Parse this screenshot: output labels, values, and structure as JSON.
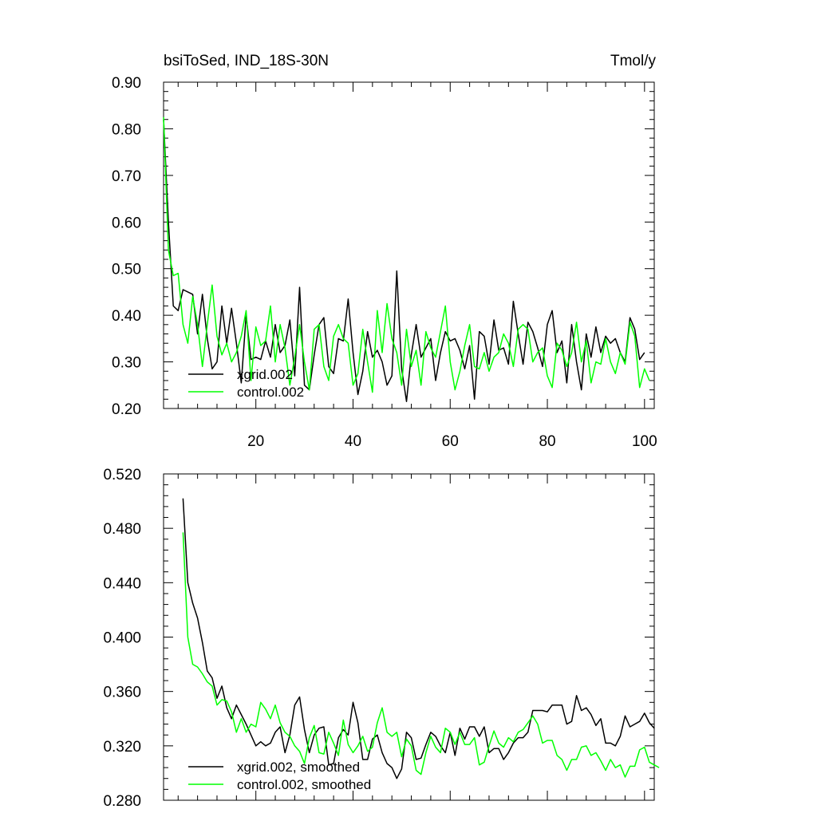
{
  "chart_data": [
    {
      "type": "line",
      "title_left": "bsiToSed, IND_18S-30N",
      "title_right": "Tmol/y",
      "xlim": [
        1,
        102
      ],
      "ylim": [
        0.2,
        0.9
      ],
      "yticks": [
        "0.90",
        "0.80",
        "0.70",
        "0.60",
        "0.50",
        "0.40",
        "0.30",
        "0.20"
      ],
      "xticks": [
        "20",
        "40",
        "60",
        "80",
        "100"
      ],
      "series": [
        {
          "name": "xgrid.002",
          "color": "#000000",
          "x_start": 1,
          "values": [
            0.82,
            0.6,
            0.42,
            0.41,
            0.455,
            0.45,
            0.445,
            0.36,
            0.445,
            0.35,
            0.285,
            0.3,
            0.42,
            0.34,
            0.415,
            0.34,
            0.255,
            0.4,
            0.305,
            0.31,
            0.305,
            0.345,
            0.31,
            0.38,
            0.32,
            0.335,
            0.39,
            0.27,
            0.46,
            0.25,
            0.24,
            0.315,
            0.38,
            0.395,
            0.29,
            0.275,
            0.35,
            0.345,
            0.435,
            0.32,
            0.23,
            0.28,
            0.365,
            0.31,
            0.325,
            0.3,
            0.25,
            0.27,
            0.495,
            0.285,
            0.215,
            0.315,
            0.38,
            0.31,
            0.33,
            0.35,
            0.26,
            0.32,
            0.365,
            0.345,
            0.35,
            0.325,
            0.285,
            0.335,
            0.22,
            0.365,
            0.355,
            0.295,
            0.39,
            0.325,
            0.33,
            0.295,
            0.43,
            0.36,
            0.295,
            0.385,
            0.365,
            0.33,
            0.29,
            0.38,
            0.41,
            0.32,
            0.345,
            0.255,
            0.38,
            0.3,
            0.24,
            0.36,
            0.31,
            0.375,
            0.32,
            0.355,
            0.34,
            0.35,
            0.32,
            0.3,
            0.395,
            0.37,
            0.305,
            0.32
          ]
        },
        {
          "name": "control.002",
          "color": "#00ff00",
          "x_start": 1,
          "values": [
            0.825,
            0.54,
            0.485,
            0.49,
            0.38,
            0.34,
            0.44,
            0.38,
            0.29,
            0.38,
            0.465,
            0.355,
            0.315,
            0.34,
            0.3,
            0.32,
            0.355,
            0.41,
            0.26,
            0.375,
            0.335,
            0.345,
            0.42,
            0.3,
            0.38,
            0.33,
            0.25,
            0.31,
            0.38,
            0.3,
            0.24,
            0.37,
            0.38,
            0.29,
            0.26,
            0.355,
            0.38,
            0.35,
            0.34,
            0.25,
            0.275,
            0.37,
            0.3,
            0.235,
            0.41,
            0.32,
            0.425,
            0.35,
            0.32,
            0.25,
            0.37,
            0.29,
            0.325,
            0.25,
            0.365,
            0.33,
            0.31,
            0.365,
            0.42,
            0.3,
            0.24,
            0.28,
            0.335,
            0.38,
            0.29,
            0.285,
            0.32,
            0.28,
            0.31,
            0.32,
            0.36,
            0.34,
            0.29,
            0.37,
            0.38,
            0.37,
            0.3,
            0.32,
            0.33,
            0.27,
            0.245,
            0.34,
            0.325,
            0.29,
            0.32,
            0.385,
            0.3,
            0.345,
            0.255,
            0.3,
            0.295,
            0.35,
            0.3,
            0.275,
            0.32,
            0.295,
            0.385,
            0.355,
            0.245,
            0.285,
            0.26
          ]
        }
      ],
      "legend": [
        "xgrid.002",
        "control.002"
      ],
      "legend_position": "bottom-left"
    },
    {
      "type": "line",
      "xlim": [
        1,
        102
      ],
      "ylim": [
        0.28,
        0.52
      ],
      "yticks": [
        "0.520",
        "0.480",
        "0.440",
        "0.400",
        "0.360",
        "0.320",
        "0.280"
      ],
      "series": [
        {
          "name": "xgrid.002, smoothed",
          "color": "#000000",
          "x_start": 5,
          "values": [
            0.502,
            0.44,
            0.425,
            0.414,
            0.396,
            0.375,
            0.37,
            0.355,
            0.364,
            0.348,
            0.34,
            0.35,
            0.343,
            0.336,
            0.328,
            0.32,
            0.323,
            0.32,
            0.322,
            0.33,
            0.334,
            0.315,
            0.328,
            0.35,
            0.356,
            0.332,
            0.315,
            0.328,
            0.333,
            0.334,
            0.306,
            0.307,
            0.326,
            0.332,
            0.328,
            0.352,
            0.337,
            0.31,
            0.31,
            0.325,
            0.328,
            0.315,
            0.307,
            0.304,
            0.296,
            0.303,
            0.33,
            0.326,
            0.31,
            0.311,
            0.321,
            0.33,
            0.327,
            0.32,
            0.315,
            0.33,
            0.313,
            0.333,
            0.325,
            0.334,
            0.334,
            0.327,
            0.334,
            0.315,
            0.318,
            0.318,
            0.31,
            0.315,
            0.322,
            0.326,
            0.326,
            0.33,
            0.346,
            0.346,
            0.346,
            0.345,
            0.35,
            0.35,
            0.35,
            0.336,
            0.338,
            0.357,
            0.346,
            0.348,
            0.343,
            0.335,
            0.34,
            0.322,
            0.322,
            0.32,
            0.327,
            0.342,
            0.334,
            0.336,
            0.338,
            0.344,
            0.337,
            0.333
          ]
        },
        {
          "name": "control.002, smoothed",
          "color": "#00ff00",
          "x_start": 5,
          "values": [
            0.477,
            0.4,
            0.38,
            0.378,
            0.373,
            0.367,
            0.364,
            0.35,
            0.354,
            0.353,
            0.345,
            0.33,
            0.34,
            0.33,
            0.336,
            0.334,
            0.352,
            0.347,
            0.34,
            0.35,
            0.337,
            0.33,
            0.327,
            0.32,
            0.316,
            0.307,
            0.326,
            0.335,
            0.315,
            0.314,
            0.33,
            0.322,
            0.313,
            0.339,
            0.321,
            0.315,
            0.32,
            0.327,
            0.316,
            0.319,
            0.337,
            0.348,
            0.33,
            0.327,
            0.33,
            0.312,
            0.325,
            0.32,
            0.302,
            0.299,
            0.315,
            0.327,
            0.319,
            0.315,
            0.333,
            0.33,
            0.321,
            0.33,
            0.321,
            0.321,
            0.326,
            0.306,
            0.308,
            0.32,
            0.331,
            0.322,
            0.319,
            0.326,
            0.323,
            0.33,
            0.332,
            0.337,
            0.342,
            0.336,
            0.322,
            0.324,
            0.324,
            0.313,
            0.31,
            0.302,
            0.31,
            0.31,
            0.319,
            0.32,
            0.313,
            0.315,
            0.309,
            0.302,
            0.31,
            0.304,
            0.306,
            0.297,
            0.305,
            0.305,
            0.317,
            0.319,
            0.308,
            0.306,
            0.304
          ]
        }
      ],
      "legend": [
        "xgrid.002, smoothed",
        "control.002, smoothed"
      ],
      "legend_position": "bottom-left"
    }
  ]
}
